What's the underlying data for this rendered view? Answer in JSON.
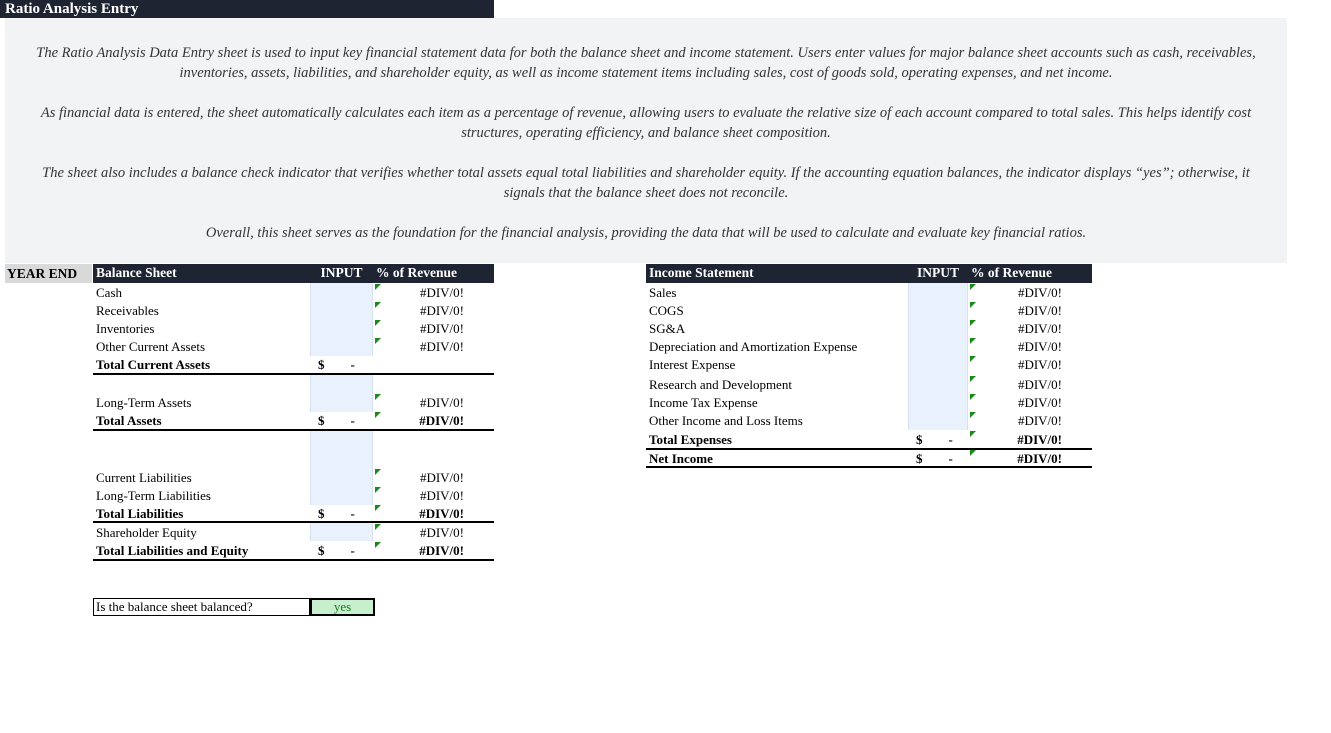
{
  "title": "Ratio Analysis Entry",
  "description": [
    "The Ratio Analysis Data Entry sheet is used to input key financial statement data for both the balance sheet and income statement. Users enter values for major balance sheet accounts such as cash, receivables, inventories, assets, liabilities, and shareholder equity, as well as income statement items including sales, cost of goods sold, operating expenses, and net income.",
    "As financial data is entered, the sheet automatically calculates each item as a percentage of revenue, allowing users to evaluate the relative size of each account compared to total sales. This helps identify cost structures, operating efficiency, and balance sheet composition.",
    "The sheet also includes a balance check indicator that verifies whether total assets equal total liabilities and shareholder equity. If the accounting equation balances, the indicator displays “yes”; otherwise, it signals that the balance sheet does not reconcile.",
    "Overall, this sheet serves as the foundation for the financial analysis, providing the data that will be used to calculate and evaluate key financial ratios."
  ],
  "year_end": "YEAR END",
  "balance": {
    "header": {
      "label": "Balance Sheet",
      "input": "INPUT",
      "pct": "% of Revenue"
    },
    "rows": [
      {
        "label": "Cash",
        "input": "",
        "pct": "#DIV/0!",
        "bold": false
      },
      {
        "label": "Receivables",
        "input": "",
        "pct": "#DIV/0!",
        "bold": false
      },
      {
        "label": "Inventories",
        "input": "",
        "pct": "#DIV/0!",
        "bold": false
      },
      {
        "label": "Other Current Assets",
        "input": "",
        "pct": "#DIV/0!",
        "bold": false
      },
      {
        "label": "Total Current Assets",
        "input": "$        -",
        "pct": "",
        "bold": true
      },
      {
        "label": "Long-Term Assets",
        "input": "",
        "pct": "#DIV/0!",
        "bold": false
      },
      {
        "label": "Total Assets",
        "input": "$        -",
        "pct": "#DIV/0!",
        "bold": true
      },
      {
        "label": "Current Liabilities",
        "input": "",
        "pct": "#DIV/0!",
        "bold": false
      },
      {
        "label": "Long-Term Liabilities",
        "input": "",
        "pct": "#DIV/0!",
        "bold": false
      },
      {
        "label": "Total Liabilities",
        "input": "$        -",
        "pct": "#DIV/0!",
        "bold": true
      },
      {
        "label": "Shareholder Equity",
        "input": "",
        "pct": "#DIV/0!",
        "bold": false
      },
      {
        "label": "Total Liabilities and Equity",
        "input": "$        -",
        "pct": "#DIV/0!",
        "bold": true
      }
    ]
  },
  "income": {
    "header": {
      "label": "Income Statement",
      "input": "INPUT",
      "pct": "% of Revenue"
    },
    "rows": [
      {
        "label": "Sales",
        "input": "",
        "pct": "#DIV/0!",
        "bold": false
      },
      {
        "label": "COGS",
        "input": "",
        "pct": "#DIV/0!",
        "bold": false
      },
      {
        "label": "SG&A",
        "input": "",
        "pct": "#DIV/0!",
        "bold": false
      },
      {
        "label": "Depreciation and Amortization Expense",
        "input": "",
        "pct": "#DIV/0!",
        "bold": false
      },
      {
        "label": "Interest Expense",
        "input": "",
        "pct": "#DIV/0!",
        "bold": false
      },
      {
        "label": "Research and Development",
        "input": "",
        "pct": "#DIV/0!",
        "bold": false
      },
      {
        "label": "Income Tax Expense",
        "input": "",
        "pct": "#DIV/0!",
        "bold": false
      },
      {
        "label": "Other Income and Loss Items",
        "input": "",
        "pct": "#DIV/0!",
        "bold": false
      },
      {
        "label": "Total Expenses",
        "input": "$        -",
        "pct": "#DIV/0!",
        "bold": true
      },
      {
        "label": "Net Income",
        "input": "$        -",
        "pct": "#DIV/0!",
        "bold": true
      }
    ]
  },
  "balance_check": {
    "label": "Is the balance sheet balanced?",
    "value": "yes",
    "value_bg": "#c6efce",
    "value_color": "#1a7a1a"
  },
  "colors": {
    "header_bg": "#1f2433",
    "input_bg": "#e9f1fd",
    "desc_bg": "#f2f3f5"
  }
}
